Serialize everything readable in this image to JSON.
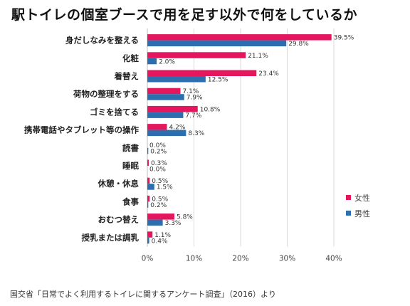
{
  "title": "駅トイレの個室ブースで用を足す以外で何をしているか",
  "source": "国交省「日常でよく利用するトイレに関するアンケート調査」（2016）より",
  "chart_data": {
    "type": "bar",
    "orientation": "horizontal",
    "categories": [
      "身だしなみを整える",
      "化粧",
      "着替え",
      "荷物の整理をする",
      "ゴミを捨てる",
      "携帯電話やタブレット等の操作",
      "読書",
      "睡眠",
      "休憩・休息",
      "食事",
      "おむつ替え",
      "授乳または調乳"
    ],
    "series": [
      {
        "name": "女性",
        "color": "#e4165e",
        "values": [
          39.5,
          21.1,
          23.4,
          7.1,
          10.8,
          4.2,
          0.0,
          0.3,
          0.5,
          0.5,
          5.8,
          1.1
        ],
        "labels": [
          "39.5%",
          "21.1%",
          "23.4%",
          "7.1%",
          "10.8%",
          "4.2%",
          "0.0%",
          "0.3%",
          "0.5%",
          "0.5%",
          "5.8%",
          "1.1%"
        ]
      },
      {
        "name": "男性",
        "color": "#2d6fae",
        "values": [
          29.8,
          2.0,
          12.5,
          7.9,
          7.7,
          8.3,
          0.2,
          0.0,
          1.5,
          0.2,
          3.3,
          0.4
        ],
        "labels": [
          "29.8%",
          "2.0%",
          "12.5%",
          "7.9%",
          "7.7%",
          "8.3%",
          "0.2%",
          "0.0%",
          "1.5%",
          "0.2%",
          "3.3%",
          "0.4%"
        ]
      }
    ],
    "xlim": [
      0,
      40
    ],
    "xticks": [
      "0%",
      "10%",
      "20%",
      "30%",
      "40%"
    ],
    "grid": true,
    "legend": "right"
  }
}
